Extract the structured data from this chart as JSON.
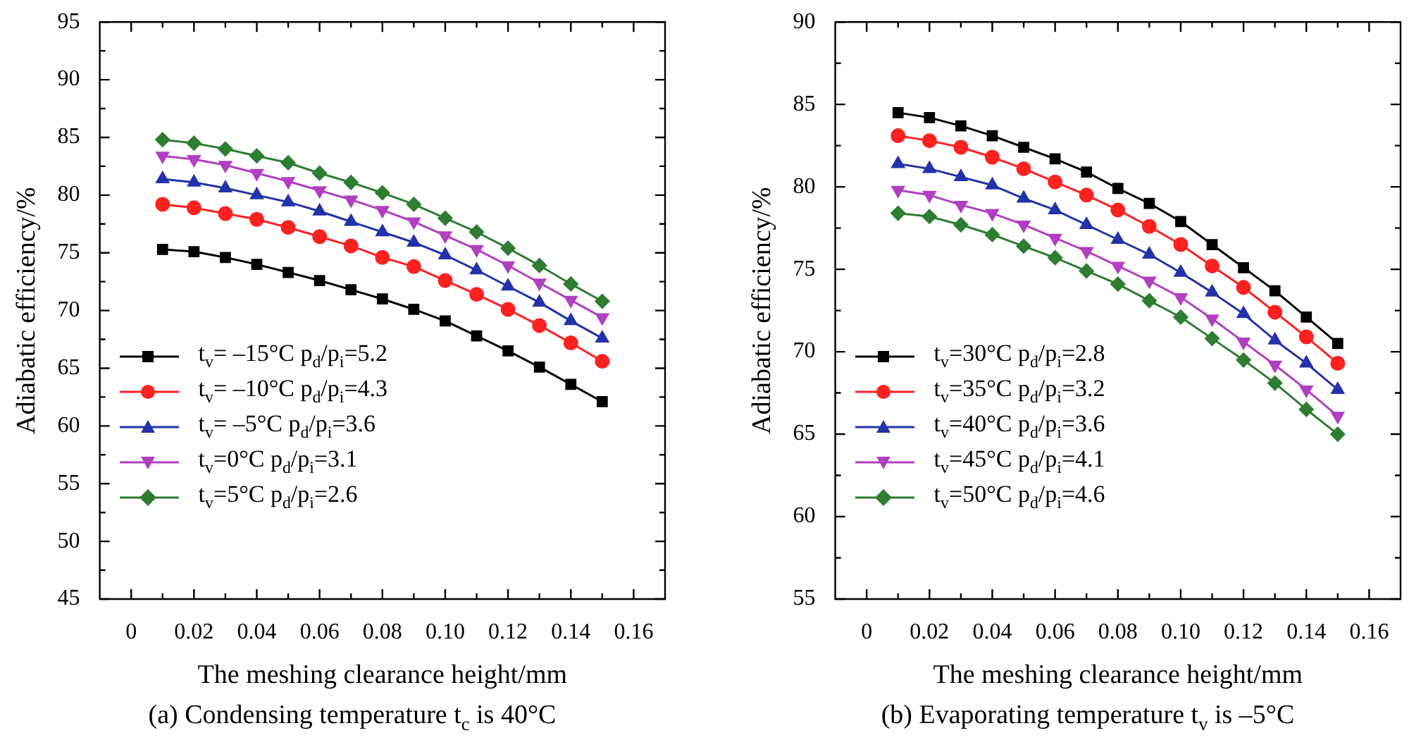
{
  "chart_data": [
    {
      "type": "line",
      "title": "(a) Condensing temperature t$_{c}$ is 40°C",
      "xlabel": "The meshing clearance height/mm",
      "ylabel": "Adiabatic efficiency/%",
      "x": [
        0.01,
        0.02,
        0.03,
        0.04,
        0.05,
        0.06,
        0.07,
        0.08,
        0.09,
        0.1,
        0.11,
        0.12,
        0.13,
        0.14,
        0.15
      ],
      "xlim": [
        -0.01,
        0.17
      ],
      "xticks": [
        0,
        0.02,
        0.04,
        0.06,
        0.08,
        {
          "value": 0.1,
          "label": "0.10"
        },
        0.12,
        0.14,
        0.16
      ],
      "ylim": [
        45,
        95
      ],
      "yticks": [
        45,
        50,
        55,
        60,
        65,
        70,
        75,
        80,
        85,
        90,
        95
      ],
      "legend": "bottom left",
      "series": [
        {
          "name": "t$_{v}$= –15°C  p$_{d}$/p$_{i}$=5.2",
          "color": "#000000",
          "marker": "square",
          "values": [
            75.3,
            75.1,
            74.6,
            74.0,
            73.3,
            72.6,
            71.8,
            71.0,
            70.1,
            69.1,
            67.8,
            66.5,
            65.1,
            63.6,
            62.1
          ]
        },
        {
          "name": "t$_{v}$= –10°C  p$_{d}$/p$_{i}$=4.3",
          "color": "#ff2020",
          "marker": "circle",
          "values": [
            79.2,
            78.9,
            78.4,
            77.9,
            77.2,
            76.4,
            75.6,
            74.6,
            73.8,
            72.6,
            71.4,
            70.1,
            68.7,
            67.2,
            65.6
          ]
        },
        {
          "name": "t$_{v}$= –5°C  p$_{d}$/p$_{i}$=3.6",
          "color": "#2233aa",
          "marker": "triangle",
          "values": [
            81.4,
            81.1,
            80.6,
            80.0,
            79.4,
            78.6,
            77.7,
            76.8,
            75.9,
            74.8,
            73.5,
            72.1,
            70.7,
            69.1,
            67.6
          ]
        },
        {
          "name": "t$_{v}$=0°C  p$_{d}$/p$_{i}$=3.1",
          "color": "#b040c0",
          "marker": "triangle-down",
          "values": [
            83.4,
            83.1,
            82.6,
            81.9,
            81.2,
            80.4,
            79.6,
            78.7,
            77.7,
            76.5,
            75.3,
            73.9,
            72.4,
            70.9,
            69.4
          ]
        },
        {
          "name": "t$_{v}$=5°C  p$_{d}$/p$_{i}$=2.6",
          "color": "#2e7d32",
          "marker": "diamond",
          "values": [
            84.8,
            84.5,
            84.0,
            83.4,
            82.8,
            81.9,
            81.1,
            80.2,
            79.2,
            78.0,
            76.8,
            75.4,
            73.9,
            72.3,
            70.8
          ]
        }
      ]
    },
    {
      "type": "line",
      "title": "(b) Evaporating temperature t$_{v}$ is –5°C",
      "xlabel": "The meshing clearance height/mm",
      "ylabel": "Adiabatic efficiency/%",
      "x": [
        0.01,
        0.02,
        0.03,
        0.04,
        0.05,
        0.06,
        0.07,
        0.08,
        0.09,
        0.1,
        0.11,
        0.12,
        0.13,
        0.14,
        0.15
      ],
      "xlim": [
        -0.01,
        0.17
      ],
      "xticks": [
        0,
        0.02,
        0.04,
        0.06,
        0.08,
        {
          "value": 0.1,
          "label": "0.10"
        },
        0.12,
        0.14,
        0.16
      ],
      "ylim": [
        55,
        90
      ],
      "yticks": [
        55,
        60,
        65,
        70,
        75,
        80,
        85,
        90
      ],
      "legend": "bottom left",
      "series": [
        {
          "name": "t$_{v}$=30°C  p$_{d}$/p$_{i}$=2.8",
          "color": "#000000",
          "marker": "square",
          "values": [
            84.5,
            84.2,
            83.7,
            83.1,
            82.4,
            81.7,
            80.9,
            79.9,
            79.0,
            77.9,
            76.5,
            75.1,
            73.7,
            72.1,
            70.5
          ]
        },
        {
          "name": "t$_{v}$=35°C  p$_{d}$/p$_{i}$=3.2",
          "color": "#ff2020",
          "marker": "circle",
          "values": [
            83.1,
            82.8,
            82.4,
            81.8,
            81.1,
            80.3,
            79.5,
            78.6,
            77.6,
            76.5,
            75.2,
            73.9,
            72.4,
            70.9,
            69.3
          ]
        },
        {
          "name": "t$_{v}$=40°C  p$_{d}$/p$_{i}$=3.6",
          "color": "#2233aa",
          "marker": "triangle",
          "values": [
            81.4,
            81.1,
            80.6,
            80.1,
            79.3,
            78.6,
            77.7,
            76.8,
            75.9,
            74.8,
            73.6,
            72.3,
            70.7,
            69.3,
            67.7
          ]
        },
        {
          "name": "t$_{v}$=45°C  p$_{d}$/p$_{i}$=4.1",
          "color": "#b040c0",
          "marker": "triangle-down",
          "values": [
            79.8,
            79.5,
            78.9,
            78.4,
            77.7,
            76.9,
            76.1,
            75.2,
            74.3,
            73.3,
            72.0,
            70.6,
            69.2,
            67.7,
            66.1
          ]
        },
        {
          "name": "t$_{v}$=50°C  p$_{d}$/p$_{i}$=4.6",
          "color": "#2e7d32",
          "marker": "diamond",
          "values": [
            78.4,
            78.2,
            77.7,
            77.1,
            76.4,
            75.7,
            74.9,
            74.1,
            73.1,
            72.1,
            70.8,
            69.5,
            68.1,
            66.5,
            65.0
          ]
        }
      ]
    }
  ]
}
